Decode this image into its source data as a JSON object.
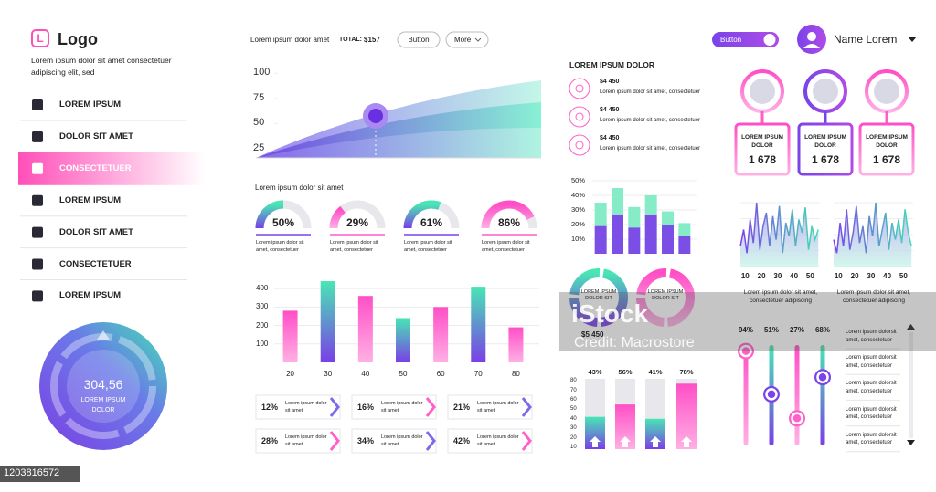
{
  "sidebar": {
    "logo_letter": "L",
    "logo": "Logo",
    "tagline": "Lorem ipsum dolor sit amet consectetuer adipiscing elit, sed",
    "nav": [
      "LOREM IPSUM",
      "DOLOR SIT AMET",
      "CONSECTETUER",
      "LOREM IPSUM",
      "DOLOR SIT AMET",
      "CONSECTETUER",
      "LOREM IPSUM"
    ],
    "active": 2
  },
  "gauge": {
    "value": "304,56",
    "label": "LOREM IPSUM DOLOR"
  },
  "toolbar": {
    "text": "Lorem ipsum dolor amet",
    "total_label": "TOTAL:",
    "total": "$157",
    "button": "Button",
    "more": "More"
  },
  "user": {
    "toggle": "Button",
    "name": "Name Lorem"
  },
  "area_chart": {
    "ylim": [
      16,
      102
    ],
    "yticks": [
      25,
      50,
      75,
      100
    ]
  },
  "donuts": {
    "title": "Lorem ipsum dolor sit amet",
    "values": [
      50,
      29,
      61,
      86
    ],
    "value_labels": [
      "50%",
      "29%",
      "61%",
      "86%"
    ],
    "captions": [
      "Lorem ipsum dolor sit amet, consectetuer",
      "Lorem ipsum dolor sit amet, consectetuer",
      "Lorem ipsum dolor sit amet, consectetuer",
      "Lorem ipsum dolor sit amet, consectetuer"
    ]
  },
  "bar_chart": {
    "type": "bar",
    "categories": [
      20,
      30,
      40,
      50,
      60,
      70,
      80
    ],
    "values": [
      280,
      440,
      360,
      240,
      300,
      410,
      190
    ],
    "ylim": [
      0,
      450
    ],
    "yticks": [
      100,
      200,
      300,
      400
    ],
    "grid": true
  },
  "tiles": {
    "values": [
      12,
      16,
      21,
      28,
      34,
      42
    ],
    "value_labels": [
      "12%",
      "16%",
      "21%",
      "28%",
      "34%",
      "42%"
    ],
    "captions": [
      "Lorem ipsum dolor sit amet",
      "Lorem ipsum dolor sit amet",
      "Lorem ipsum dolor sit amet",
      "Lorem ipsum dolor sit amet",
      "Lorem ipsum dolor sit amet",
      "Lorem ipsum dolor sit amet"
    ]
  },
  "finance": {
    "title": "LOREM IPSUM DOLOR",
    "items": [
      {
        "amount": "$4 450",
        "text": "Lorem ipsum dolor sit amet, consectetuer"
      },
      {
        "amount": "$4 450",
        "text": "Lorem ipsum dolor sit amet, consectetuer"
      },
      {
        "amount": "$4 450",
        "text": "Lorem ipsum dolor sit amet, consectetuer"
      }
    ]
  },
  "stacked_chart": {
    "type": "bar",
    "series": [
      {
        "color": "#7b4fe6",
        "values": [
          19,
          27,
          18,
          27,
          20,
          12
        ]
      },
      {
        "color": "#86ecc8",
        "values": [
          16,
          18,
          14,
          13,
          9,
          9
        ]
      }
    ],
    "ylim": [
      0,
      55
    ],
    "yticks": [
      {
        "value": 10,
        "label": "10%"
      },
      {
        "value": 20,
        "label": "20%"
      },
      {
        "value": 30,
        "label": "30%"
      },
      {
        "value": 40,
        "label": "40%"
      },
      {
        "value": 50,
        "label": "50%"
      }
    ],
    "grid": true
  },
  "rings": {
    "labels": [
      "LOREM IPSUM DOLOR SIT",
      "LOREM IPSUM DOLOR SIT"
    ],
    "amount": "$5 450"
  },
  "progress_chart": {
    "type": "bar",
    "values": [
      43,
      56,
      41,
      78
    ],
    "value_labels": [
      "43%",
      "56%",
      "41%",
      "78%"
    ],
    "ylim": [
      10,
      85
    ],
    "yticks": [
      10,
      20,
      30,
      40,
      50,
      60,
      70,
      80
    ]
  },
  "cards": [
    {
      "title": "LOREM IPSUM DOLOR",
      "value": "1 678"
    },
    {
      "title": "LOREM IPSUM DOLOR",
      "value": "1 678"
    },
    {
      "title": "LOREM IPSUM DOLOR",
      "value": "1 678"
    }
  ],
  "line_charts": [
    {
      "type": "line",
      "x": [
        7,
        9,
        11,
        13,
        15,
        17,
        19,
        21,
        23,
        25,
        27,
        29,
        31,
        33,
        35,
        37,
        39,
        41,
        43,
        45,
        47,
        49,
        51,
        53,
        55
      ],
      "values": [
        30,
        55,
        20,
        70,
        35,
        95,
        25,
        60,
        80,
        30,
        75,
        40,
        90,
        20,
        65,
        45,
        85,
        30,
        70,
        50,
        88,
        25,
        60,
        40,
        55
      ],
      "xlim": [
        7,
        56
      ],
      "xticks": [
        10,
        20,
        30,
        40,
        50
      ],
      "caption": "Lorem ipsum dolor sit amet, consectetuer adipiscing"
    },
    {
      "type": "line",
      "x": [
        7,
        9,
        11,
        13,
        15,
        17,
        19,
        21,
        23,
        25,
        27,
        29,
        31,
        33,
        35,
        37,
        39,
        41,
        43,
        45,
        47,
        49,
        51,
        53,
        55
      ],
      "values": [
        40,
        20,
        65,
        30,
        85,
        25,
        50,
        90,
        35,
        60,
        20,
        75,
        45,
        95,
        30,
        55,
        80,
        25,
        65,
        40,
        70,
        35,
        85,
        50,
        30
      ],
      "xlim": [
        7,
        56
      ],
      "xticks": [
        10,
        20,
        30,
        40,
        50
      ],
      "caption": "Lorem ipsum dolor sit amet, consectetuer adipiscing"
    }
  ],
  "sliders": {
    "values": [
      94,
      51,
      27,
      68
    ],
    "value_labels": [
      "94%",
      "51%",
      "27%",
      "68%"
    ]
  },
  "list": {
    "items": [
      "Lorem ipsum dolorsit amet, consectetuer",
      "Lorem ipsum dolorsit amet, consectetuer",
      "Lorem ipsum dolorsit amet, consectetuer",
      "Lorem ipsum dolorsit amet, consectetuer",
      "Lorem ipsum dolorsit amet, consectetuer"
    ]
  },
  "watermark": {
    "brand": "iStock",
    "credit": "Credit: Macrostore",
    "id": "1203816572"
  }
}
